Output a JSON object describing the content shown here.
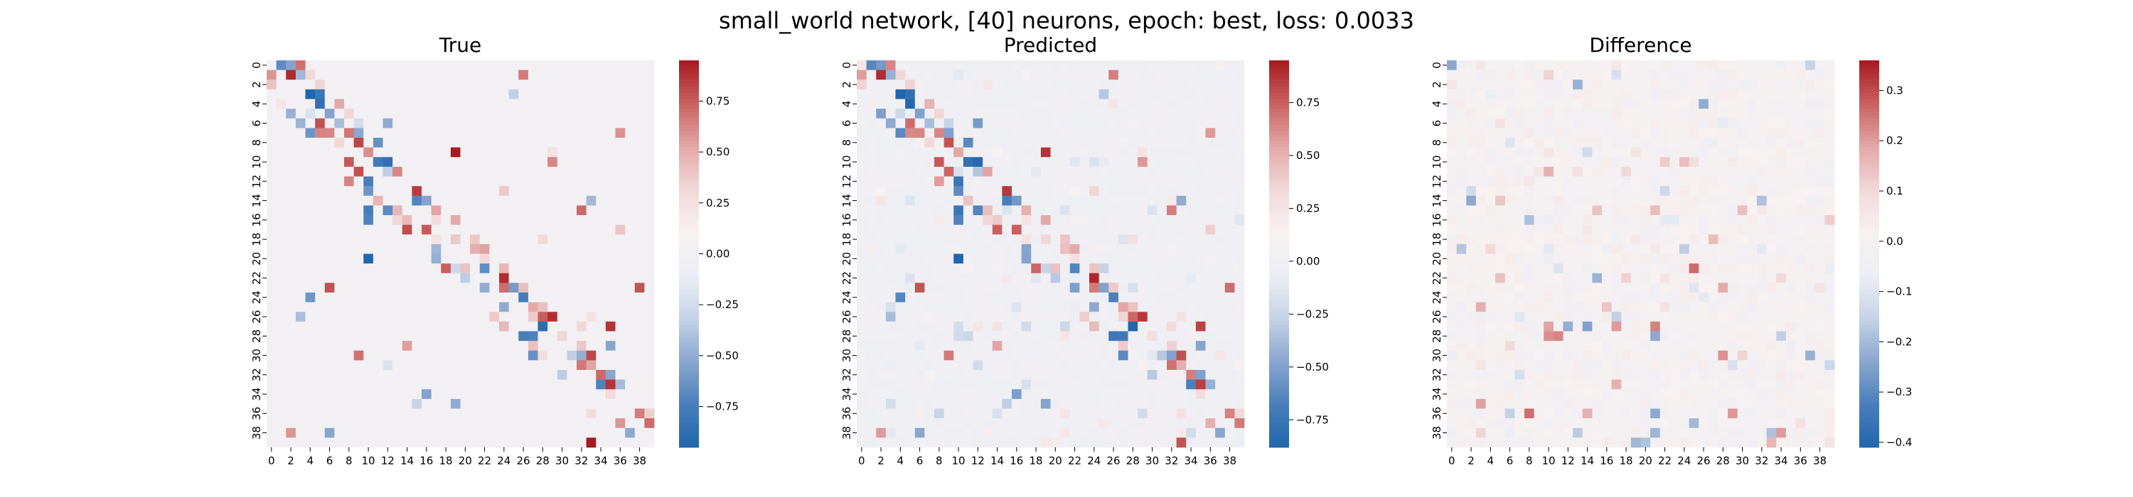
{
  "figure": {
    "suptitle": "small_world network, [40] neurons, epoch: best, loss: 0.0033"
  },
  "colors": {
    "cmap": [
      "#2166ac",
      "#4a7fbb",
      "#8aa6cf",
      "#c5d3e6",
      "#eceef4",
      "#f7f1f1",
      "#f2d8d8",
      "#e3a7a7",
      "#c9605f",
      "#a7191f"
    ],
    "background": "#ffffff"
  },
  "chart_data": [
    {
      "type": "heatmap",
      "title": "True",
      "size": 40,
      "tick_labels": [
        "0",
        "2",
        "4",
        "6",
        "8",
        "10",
        "12",
        "14",
        "16",
        "18",
        "20",
        "22",
        "24",
        "26",
        "28",
        "30",
        "32",
        "34",
        "36",
        "38"
      ],
      "vmin": -0.95,
      "vmax": 0.95,
      "colorbar_ticks": [
        -0.75,
        -0.5,
        -0.25,
        0.0,
        0.25,
        0.5,
        0.75
      ],
      "colorbar_tick_labels": [
        "−0.75",
        "−0.50",
        "−0.25",
        "0.00",
        "0.25",
        "0.50",
        "0.75"
      ],
      "matrix": "true"
    },
    {
      "type": "heatmap",
      "title": "Predicted",
      "size": 40,
      "tick_labels": [
        "0",
        "2",
        "4",
        "6",
        "8",
        "10",
        "12",
        "14",
        "16",
        "18",
        "20",
        "22",
        "24",
        "26",
        "28",
        "30",
        "32",
        "34",
        "36",
        "38"
      ],
      "vmin": -0.88,
      "vmax": 0.95,
      "colorbar_ticks": [
        -0.75,
        -0.5,
        -0.25,
        0.0,
        0.25,
        0.5,
        0.75
      ],
      "colorbar_tick_labels": [
        "−0.75",
        "−0.50",
        "−0.25",
        "0.00",
        "0.25",
        "0.50",
        "0.75"
      ],
      "matrix": "pred"
    },
    {
      "type": "heatmap",
      "title": "Difference",
      "size": 40,
      "tick_labels": [
        "0",
        "2",
        "4",
        "6",
        "8",
        "10",
        "12",
        "14",
        "16",
        "18",
        "20",
        "22",
        "24",
        "26",
        "28",
        "30",
        "32",
        "34",
        "36",
        "38"
      ],
      "vmin": -0.41,
      "vmax": 0.36,
      "colorbar_ticks": [
        -0.4,
        -0.3,
        -0.2,
        -0.1,
        0.0,
        0.1,
        0.2,
        0.3
      ],
      "colorbar_tick_labels": [
        "−0.4",
        "−0.3",
        "−0.2",
        "−0.1",
        "0.0",
        "0.1",
        "0.2",
        "0.3"
      ],
      "matrix": "diff"
    }
  ]
}
